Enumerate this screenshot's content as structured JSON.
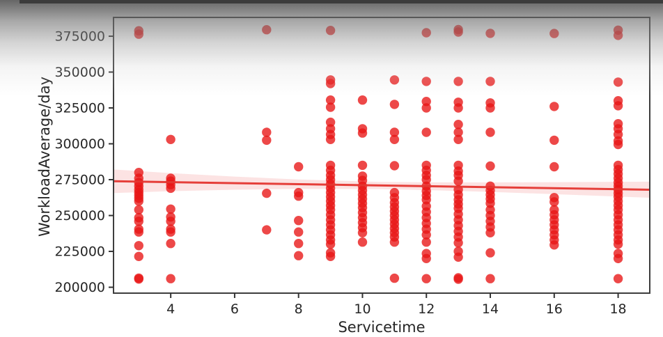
{
  "chart_data": {
    "type": "scatter",
    "title": "",
    "xlabel": "Servicetime",
    "ylabel": "WorkloadAverage/day",
    "xlim": [
      2.21,
      18.99
    ],
    "ylim": [
      195900,
      388100
    ],
    "xticks": [
      4,
      6,
      8,
      10,
      12,
      14,
      16,
      18
    ],
    "yticks": [
      200000,
      225000,
      250000,
      275000,
      300000,
      325000,
      350000,
      375000
    ],
    "grid": false,
    "legend": null,
    "marker": {
      "color": "#e81414",
      "alpha": 0.78,
      "radius": 6.7
    },
    "regression_line": {
      "color": "#e43630",
      "width": 3,
      "x": [
        2.21,
        18.99
      ],
      "y": [
        273900,
        268000
      ]
    },
    "ci_band": {
      "color": "#f06464",
      "alpha": 0.18,
      "x": [
        2.21,
        4,
        6,
        8,
        10.5,
        12,
        14,
        16,
        18.99
      ],
      "upper": [
        282100,
        279570,
        277166,
        275162,
        273482,
        273154,
        273050,
        273246,
        273593
      ],
      "lower": [
        265700,
        266970,
        267966,
        268562,
        268482,
        267754,
        266450,
        264846,
        262393
      ]
    },
    "axis_style": {
      "spine_color": "#3d3d3d",
      "tick_color": "#333333",
      "label_color": "#262626"
    },
    "points": [
      [
        3,
        378800
      ],
      [
        3,
        376400
      ],
      [
        3,
        280000
      ],
      [
        3,
        276000
      ],
      [
        3,
        273000
      ],
      [
        3,
        270500
      ],
      [
        3,
        268000
      ],
      [
        3,
        266000
      ],
      [
        3,
        264000
      ],
      [
        3,
        262000
      ],
      [
        3,
        260000
      ],
      [
        3,
        254000
      ],
      [
        3,
        248500
      ],
      [
        3,
        246000
      ],
      [
        3,
        240500
      ],
      [
        3,
        238500
      ],
      [
        3,
        229000
      ],
      [
        3,
        221500
      ],
      [
        3,
        206400
      ],
      [
        3,
        205700
      ],
      [
        4,
        303000
      ],
      [
        4,
        276000
      ],
      [
        4,
        274000
      ],
      [
        4,
        271500
      ],
      [
        4,
        269000
      ],
      [
        4,
        254500
      ],
      [
        4,
        249000
      ],
      [
        4,
        246000
      ],
      [
        4,
        240500
      ],
      [
        4,
        238500
      ],
      [
        4,
        230500
      ],
      [
        4,
        206000
      ],
      [
        7,
        379500
      ],
      [
        7,
        308000
      ],
      [
        7,
        302500
      ],
      [
        7,
        265500
      ],
      [
        7,
        240000
      ],
      [
        8,
        284000
      ],
      [
        8,
        266000
      ],
      [
        8,
        263500
      ],
      [
        8,
        246500
      ],
      [
        8,
        238500
      ],
      [
        8,
        230500
      ],
      [
        8,
        222000
      ],
      [
        9,
        379000
      ],
      [
        9,
        344500
      ],
      [
        9,
        342000
      ],
      [
        9,
        330500
      ],
      [
        9,
        325500
      ],
      [
        9,
        315000
      ],
      [
        9,
        310500
      ],
      [
        9,
        306500
      ],
      [
        9,
        303000
      ],
      [
        9,
        285000
      ],
      [
        9,
        281500
      ],
      [
        9,
        278000
      ],
      [
        9,
        275000
      ],
      [
        9,
        272000
      ],
      [
        9,
        269000
      ],
      [
        9,
        266000
      ],
      [
        9,
        263000
      ],
      [
        9,
        260000
      ],
      [
        9,
        257000
      ],
      [
        9,
        254000
      ],
      [
        9,
        250500
      ],
      [
        9,
        247000
      ],
      [
        9,
        243500
      ],
      [
        9,
        240000
      ],
      [
        9,
        236500
      ],
      [
        9,
        233000
      ],
      [
        9,
        230000
      ],
      [
        9,
        224000
      ],
      [
        9,
        221500
      ],
      [
        10,
        330500
      ],
      [
        10,
        310500
      ],
      [
        10,
        307500
      ],
      [
        10,
        285000
      ],
      [
        10,
        277500
      ],
      [
        10,
        274500
      ],
      [
        10,
        270500
      ],
      [
        10,
        267500
      ],
      [
        10,
        264500
      ],
      [
        10,
        261500
      ],
      [
        10,
        258500
      ],
      [
        10,
        255500
      ],
      [
        10,
        252000
      ],
      [
        10,
        248500
      ],
      [
        10,
        245000
      ],
      [
        10,
        241500
      ],
      [
        10,
        238000
      ],
      [
        10,
        231500
      ],
      [
        11,
        344500
      ],
      [
        11,
        327500
      ],
      [
        11,
        308000
      ],
      [
        11,
        303000
      ],
      [
        11,
        284700
      ],
      [
        11,
        266000
      ],
      [
        11,
        262500
      ],
      [
        11,
        259000
      ],
      [
        11,
        256000
      ],
      [
        11,
        253000
      ],
      [
        11,
        250000
      ],
      [
        11,
        247000
      ],
      [
        11,
        244000
      ],
      [
        11,
        241000
      ],
      [
        11,
        238000
      ],
      [
        11,
        235000
      ],
      [
        11,
        231500
      ],
      [
        11,
        206300
      ],
      [
        12,
        377400
      ],
      [
        12,
        343500
      ],
      [
        12,
        329500
      ],
      [
        12,
        325000
      ],
      [
        12,
        308000
      ],
      [
        12,
        285000
      ],
      [
        12,
        281500
      ],
      [
        12,
        278000
      ],
      [
        12,
        275000
      ],
      [
        12,
        270500
      ],
      [
        12,
        267000
      ],
      [
        12,
        264000
      ],
      [
        12,
        261000
      ],
      [
        12,
        256500
      ],
      [
        12,
        252500
      ],
      [
        12,
        248500
      ],
      [
        12,
        244500
      ],
      [
        12,
        240500
      ],
      [
        12,
        236500
      ],
      [
        12,
        231500
      ],
      [
        12,
        223500
      ],
      [
        12,
        220000
      ],
      [
        12,
        206000
      ],
      [
        13,
        379600
      ],
      [
        13,
        377900
      ],
      [
        13,
        343500
      ],
      [
        13,
        329000
      ],
      [
        13,
        325000
      ],
      [
        13,
        313500
      ],
      [
        13,
        308000
      ],
      [
        13,
        303000
      ],
      [
        13,
        285000
      ],
      [
        13,
        281000
      ],
      [
        13,
        278000
      ],
      [
        13,
        274000
      ],
      [
        13,
        268000
      ],
      [
        13,
        264500
      ],
      [
        13,
        261000
      ],
      [
        13,
        258000
      ],
      [
        13,
        255000
      ],
      [
        13,
        251000
      ],
      [
        13,
        247000
      ],
      [
        13,
        243000
      ],
      [
        13,
        239000
      ],
      [
        13,
        235000
      ],
      [
        13,
        231000
      ],
      [
        13,
        225000
      ],
      [
        13,
        221000
      ],
      [
        13,
        206600
      ],
      [
        13,
        205600
      ],
      [
        14,
        377000
      ],
      [
        14,
        343500
      ],
      [
        14,
        328500
      ],
      [
        14,
        325000
      ],
      [
        14,
        308000
      ],
      [
        14,
        284500
      ],
      [
        14,
        270500
      ],
      [
        14,
        267500
      ],
      [
        14,
        264500
      ],
      [
        14,
        261500
      ],
      [
        14,
        258500
      ],
      [
        14,
        254000
      ],
      [
        14,
        250000
      ],
      [
        14,
        246000
      ],
      [
        14,
        242000
      ],
      [
        14,
        238000
      ],
      [
        14,
        224000
      ],
      [
        14,
        206000
      ],
      [
        16,
        376900
      ],
      [
        16,
        326000
      ],
      [
        16,
        302500
      ],
      [
        16,
        284000
      ],
      [
        16,
        262500
      ],
      [
        16,
        259500
      ],
      [
        16,
        254000
      ],
      [
        16,
        250500
      ],
      [
        16,
        247000
      ],
      [
        16,
        243500
      ],
      [
        16,
        240000
      ],
      [
        16,
        236500
      ],
      [
        16,
        233000
      ],
      [
        16,
        229500
      ],
      [
        18,
        379200
      ],
      [
        18,
        375600
      ],
      [
        18,
        343000
      ],
      [
        18,
        330000
      ],
      [
        18,
        326500
      ],
      [
        18,
        314000
      ],
      [
        18,
        310500
      ],
      [
        18,
        306500
      ],
      [
        18,
        302000
      ],
      [
        18,
        299500
      ],
      [
        18,
        285000
      ],
      [
        18,
        282000
      ],
      [
        18,
        279000
      ],
      [
        18,
        276000
      ],
      [
        18,
        273000
      ],
      [
        18,
        270500
      ],
      [
        18,
        268000
      ],
      [
        18,
        265500
      ],
      [
        18,
        263000
      ],
      [
        18,
        260000
      ],
      [
        18,
        257000
      ],
      [
        18,
        254000
      ],
      [
        18,
        250500
      ],
      [
        18,
        247000
      ],
      [
        18,
        243500
      ],
      [
        18,
        240000
      ],
      [
        18,
        236500
      ],
      [
        18,
        233000
      ],
      [
        18,
        230000
      ],
      [
        18,
        223500
      ],
      [
        18,
        220000
      ],
      [
        18,
        206000
      ]
    ]
  }
}
